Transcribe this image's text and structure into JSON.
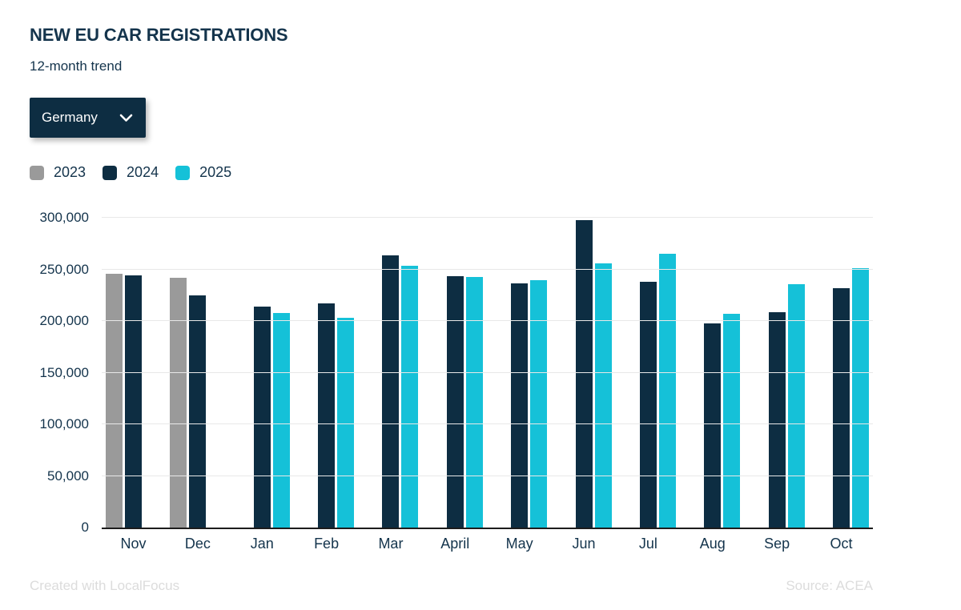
{
  "header": {
    "title": "NEW EU CAR REGISTRATIONS",
    "subtitle": "12-month trend",
    "region_selector": {
      "value": "Germany",
      "icon": "chevron-down-icon"
    }
  },
  "legend": [
    {
      "label": "2023",
      "color": "#9a9a9a"
    },
    {
      "label": "2024",
      "color": "#0d2d42"
    },
    {
      "label": "2025",
      "color": "#15c1d8"
    }
  ],
  "chart_data": {
    "type": "bar",
    "title": "NEW EU CAR REGISTRATIONS",
    "subtitle": "12-month trend",
    "region": "Germany",
    "categories": [
      "Nov",
      "Dec",
      "Jan",
      "Feb",
      "Mar",
      "April",
      "May",
      "Jun",
      "Jul",
      "Aug",
      "Sep",
      "Oct"
    ],
    "series": [
      {
        "name": "2023",
        "color": "#9a9a9a",
        "values": [
          245700,
          241900,
          null,
          null,
          null,
          null,
          null,
          null,
          null,
          null,
          null,
          null
        ]
      },
      {
        "name": "2024",
        "color": "#0d2d42",
        "values": [
          244500,
          224700,
          213600,
          216900,
          263800,
          243100,
          236400,
          297300,
          238300,
          197300,
          208800,
          232000
        ]
      },
      {
        "name": "2025",
        "color": "#15c1d8",
        "values": [
          null,
          null,
          207600,
          203400,
          253500,
          242700,
          239300,
          256200,
          264800,
          207200,
          235500,
          251300
        ]
      }
    ],
    "xlabel": "",
    "ylabel": "",
    "ylim": [
      0,
      300000
    ],
    "ytick_step": 50000,
    "ytick_labels": [
      "0",
      "50,000",
      "100,000",
      "150,000",
      "200,000",
      "250,000",
      "300,000"
    ],
    "grid": true,
    "grid_color": "#e8e8e8",
    "axis_color": "#1c1c1c",
    "legend_position": "top-left"
  },
  "footer": {
    "left": "Created with LocalFocus",
    "right": "Source: ACEA"
  }
}
